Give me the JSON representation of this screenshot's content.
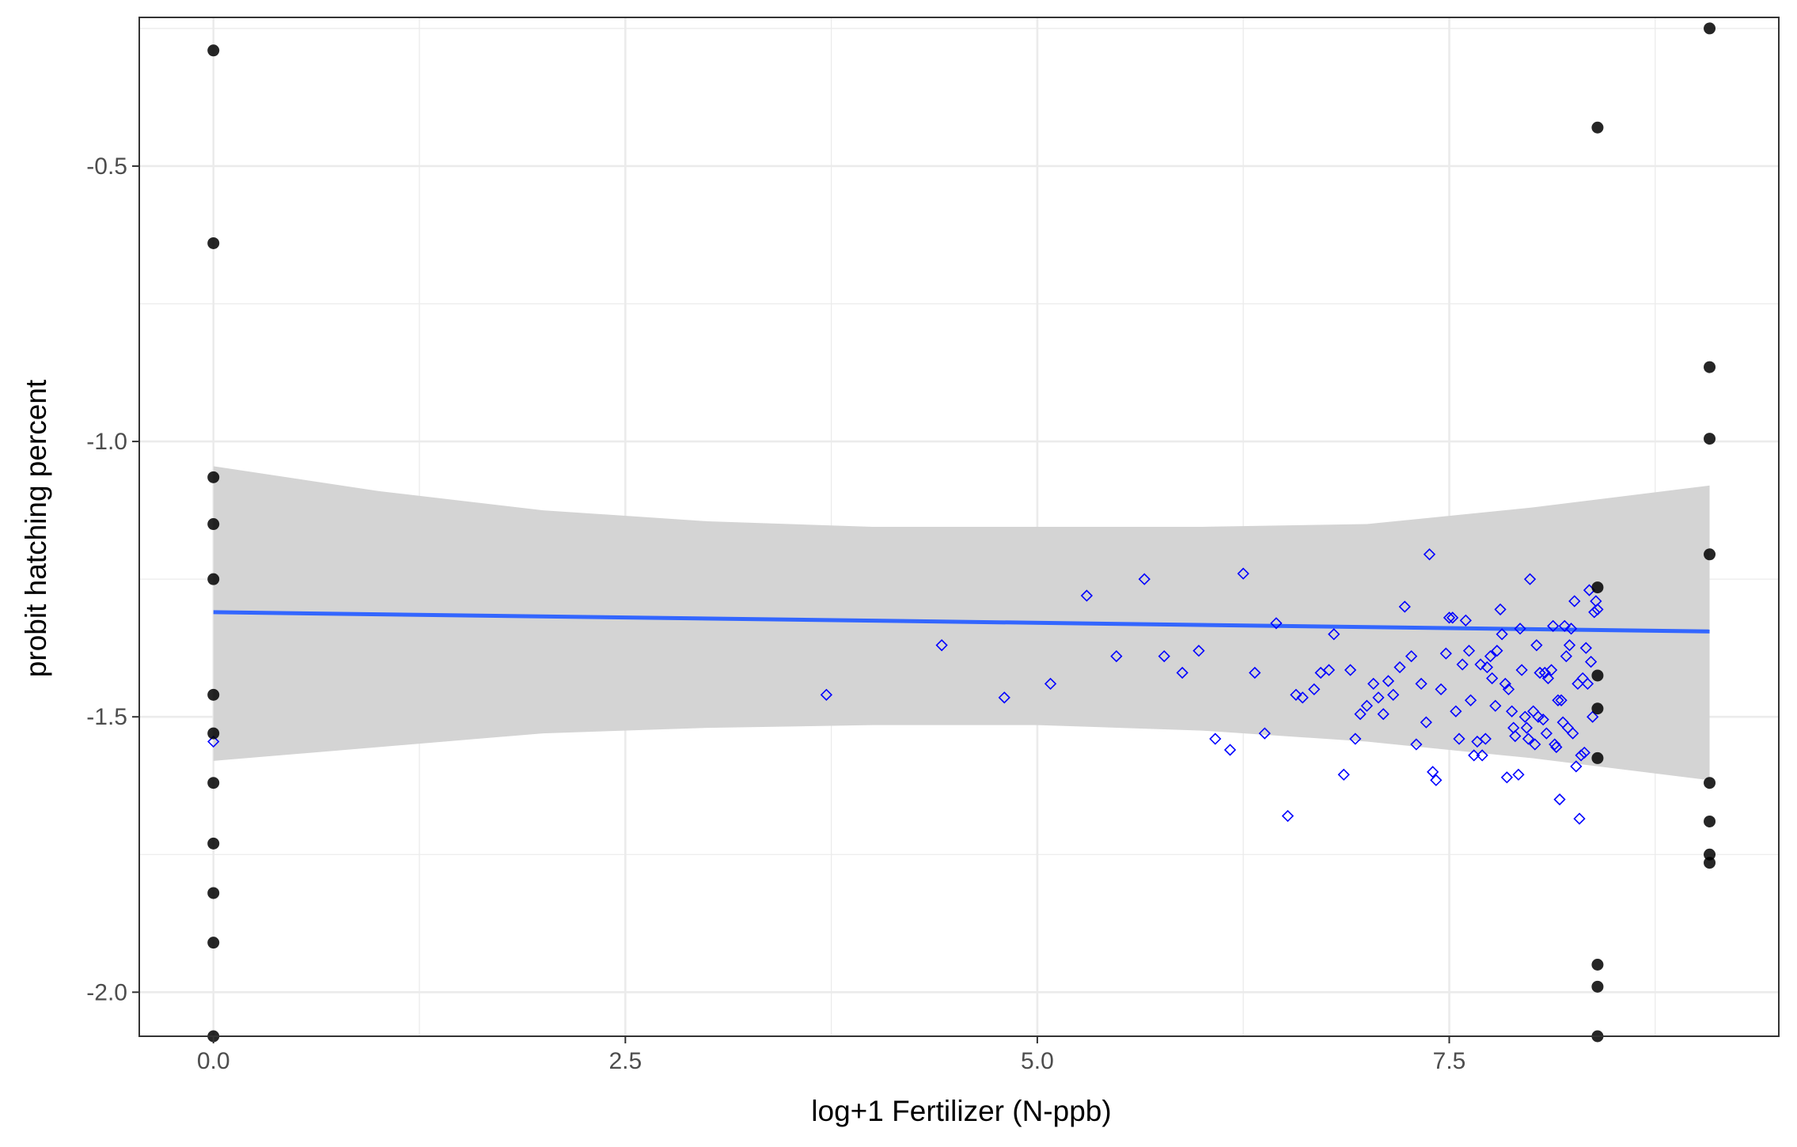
{
  "chart_data": {
    "type": "scatter",
    "title": "",
    "xlabel": "log+1 Fertilizer (N-ppb)",
    "ylabel": "probit hatching percent",
    "xlim": [
      -0.45,
      9.5
    ],
    "ylim": [
      -2.08,
      -0.23
    ],
    "xticks": [
      0.0,
      2.5,
      5.0,
      7.5
    ],
    "xtick_labels": [
      "0.0",
      "2.5",
      "5.0",
      "7.5"
    ],
    "yticks": [
      -2.0,
      -1.5,
      -1.0,
      -0.5
    ],
    "ytick_labels": [
      "-2.0",
      "-1.5",
      "-1.0",
      "-0.5"
    ],
    "grid": true,
    "legend": "none",
    "colors": {
      "black_points": "#000000",
      "open_points": "#0000ff",
      "fit_line": "#3366ff",
      "confidence_band": "#d4d4d4",
      "grid": "#ebebeb",
      "panel_border": "#333333"
    },
    "series": [
      {
        "marker": "filled-circle",
        "color": "#000000",
        "points": [
          [
            0,
            -0.29
          ],
          [
            0,
            -0.64
          ],
          [
            0,
            -1.065
          ],
          [
            0,
            -1.15
          ],
          [
            0,
            -1.25
          ],
          [
            0,
            -1.46
          ],
          [
            0,
            -1.53
          ],
          [
            0,
            -1.62
          ],
          [
            0,
            -1.73
          ],
          [
            0,
            -1.82
          ],
          [
            0,
            -1.91
          ],
          [
            0,
            -2.08
          ],
          [
            8.4,
            -0.43
          ],
          [
            8.4,
            -1.265
          ],
          [
            8.4,
            -1.425
          ],
          [
            8.4,
            -1.485
          ],
          [
            8.4,
            -1.575
          ],
          [
            8.4,
            -1.95
          ],
          [
            8.4,
            -1.99
          ],
          [
            8.4,
            -2.08
          ],
          [
            9.08,
            -0.25
          ],
          [
            9.08,
            -0.865
          ],
          [
            9.08,
            -0.995
          ],
          [
            9.08,
            -1.205
          ],
          [
            9.08,
            -1.62
          ],
          [
            9.08,
            -1.69
          ],
          [
            9.08,
            -1.75
          ],
          [
            9.08,
            -1.765
          ]
        ]
      },
      {
        "marker": "open-diamond",
        "color": "#0000ff",
        "points": [
          [
            0,
            -1.545
          ],
          [
            3.72,
            -1.46
          ],
          [
            4.42,
            -1.37
          ],
          [
            4.8,
            -1.465
          ],
          [
            5.08,
            -1.44
          ],
          [
            5.3,
            -1.28
          ],
          [
            5.48,
            -1.39
          ],
          [
            5.65,
            -1.25
          ],
          [
            5.77,
            -1.39
          ],
          [
            5.88,
            -1.42
          ],
          [
            5.98,
            -1.38
          ],
          [
            6.08,
            -1.54
          ],
          [
            6.17,
            -1.56
          ],
          [
            6.25,
            -1.24
          ],
          [
            6.32,
            -1.42
          ],
          [
            6.38,
            -1.53
          ],
          [
            6.45,
            -1.33
          ],
          [
            6.52,
            -1.68
          ],
          [
            6.57,
            -1.46
          ],
          [
            6.61,
            -1.465
          ],
          [
            6.68,
            -1.45
          ],
          [
            6.72,
            -1.42
          ],
          [
            6.77,
            -1.415
          ],
          [
            6.8,
            -1.35
          ],
          [
            6.86,
            -1.605
          ],
          [
            6.9,
            -1.415
          ],
          [
            6.93,
            -1.54
          ],
          [
            6.96,
            -1.495
          ],
          [
            7.0,
            -1.48
          ],
          [
            7.04,
            -1.44
          ],
          [
            7.07,
            -1.465
          ],
          [
            7.1,
            -1.495
          ],
          [
            7.13,
            -1.435
          ],
          [
            7.16,
            -1.46
          ],
          [
            7.2,
            -1.41
          ],
          [
            7.23,
            -1.3
          ],
          [
            7.27,
            -1.39
          ],
          [
            7.3,
            -1.55
          ],
          [
            7.33,
            -1.44
          ],
          [
            7.36,
            -1.51
          ],
          [
            7.38,
            -1.205
          ],
          [
            7.4,
            -1.6
          ],
          [
            7.42,
            -1.615
          ],
          [
            7.45,
            -1.45
          ],
          [
            7.48,
            -1.385
          ],
          [
            7.5,
            -1.32
          ],
          [
            7.52,
            -1.32
          ],
          [
            7.54,
            -1.49
          ],
          [
            7.56,
            -1.54
          ],
          [
            7.58,
            -1.405
          ],
          [
            7.6,
            -1.325
          ],
          [
            7.62,
            -1.38
          ],
          [
            7.63,
            -1.47
          ],
          [
            7.65,
            -1.57
          ],
          [
            7.67,
            -1.545
          ],
          [
            7.69,
            -1.405
          ],
          [
            7.7,
            -1.57
          ],
          [
            7.72,
            -1.54
          ],
          [
            7.73,
            -1.41
          ],
          [
            7.75,
            -1.39
          ],
          [
            7.76,
            -1.43
          ],
          [
            7.78,
            -1.48
          ],
          [
            7.79,
            -1.38
          ],
          [
            7.81,
            -1.305
          ],
          [
            7.82,
            -1.35
          ],
          [
            7.84,
            -1.44
          ],
          [
            7.85,
            -1.61
          ],
          [
            7.86,
            -1.45
          ],
          [
            7.88,
            -1.49
          ],
          [
            7.89,
            -1.52
          ],
          [
            7.9,
            -1.535
          ],
          [
            7.92,
            -1.605
          ],
          [
            7.93,
            -1.34
          ],
          [
            7.94,
            -1.415
          ],
          [
            7.96,
            -1.5
          ],
          [
            7.97,
            -1.52
          ],
          [
            7.98,
            -1.54
          ],
          [
            7.99,
            -1.25
          ],
          [
            8.01,
            -1.49
          ],
          [
            8.02,
            -1.55
          ],
          [
            8.03,
            -1.37
          ],
          [
            8.04,
            -1.5
          ],
          [
            8.05,
            -1.42
          ],
          [
            8.07,
            -1.505
          ],
          [
            8.08,
            -1.42
          ],
          [
            8.09,
            -1.53
          ],
          [
            8.1,
            -1.43
          ],
          [
            8.12,
            -1.415
          ],
          [
            8.13,
            -1.335
          ],
          [
            8.14,
            -1.55
          ],
          [
            8.15,
            -1.555
          ],
          [
            8.16,
            -1.47
          ],
          [
            8.17,
            -1.65
          ],
          [
            8.18,
            -1.47
          ],
          [
            8.19,
            -1.51
          ],
          [
            8.2,
            -1.335
          ],
          [
            8.21,
            -1.39
          ],
          [
            8.22,
            -1.52
          ],
          [
            8.23,
            -1.37
          ],
          [
            8.24,
            -1.34
          ],
          [
            8.25,
            -1.53
          ],
          [
            8.26,
            -1.29
          ],
          [
            8.27,
            -1.59
          ],
          [
            8.28,
            -1.44
          ],
          [
            8.29,
            -1.685
          ],
          [
            8.3,
            -1.57
          ],
          [
            8.31,
            -1.43
          ],
          [
            8.32,
            -1.565
          ],
          [
            8.33,
            -1.375
          ],
          [
            8.34,
            -1.44
          ],
          [
            8.35,
            -1.27
          ],
          [
            8.36,
            -1.4
          ],
          [
            8.37,
            -1.5
          ],
          [
            8.38,
            -1.31
          ],
          [
            8.39,
            -1.29
          ],
          [
            8.4,
            -1.305
          ]
        ]
      }
    ],
    "fit_line": {
      "x": [
        0,
        9.08
      ],
      "y": [
        -1.31,
        -1.345
      ]
    },
    "confidence_band": {
      "x": [
        0,
        1,
        2,
        3,
        4,
        5,
        6,
        7,
        8,
        9.08
      ],
      "upper": [
        -1.045,
        -1.09,
        -1.125,
        -1.145,
        -1.155,
        -1.155,
        -1.155,
        -1.15,
        -1.12,
        -1.08
      ],
      "lower": [
        -1.58,
        -1.555,
        -1.53,
        -1.52,
        -1.515,
        -1.515,
        -1.525,
        -1.545,
        -1.575,
        -1.615
      ]
    }
  }
}
